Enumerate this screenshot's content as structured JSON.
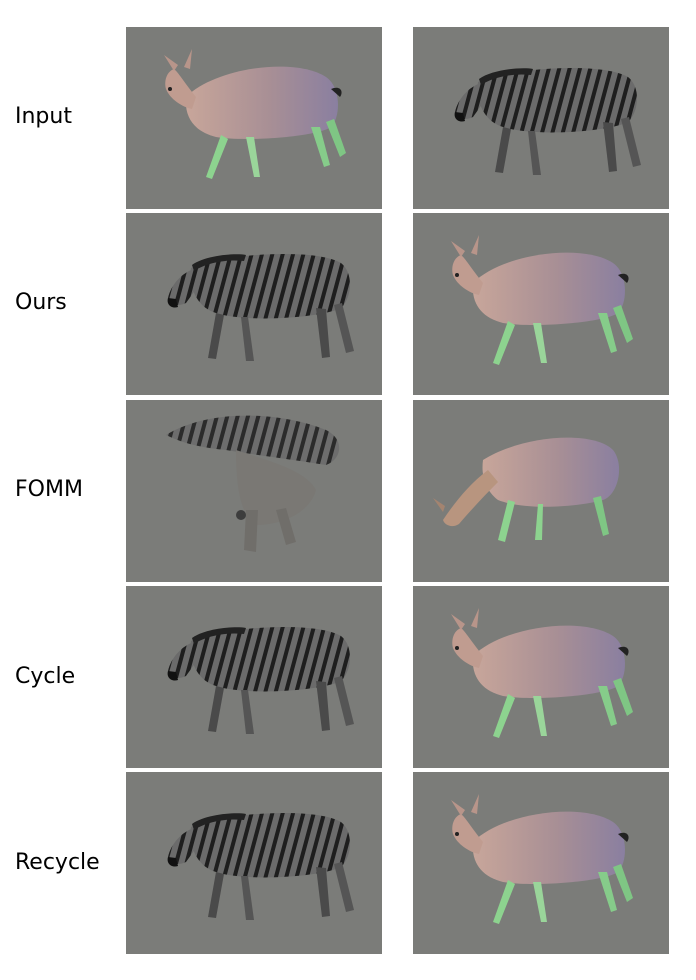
{
  "rows": [
    {
      "label": "Input",
      "left": "deer",
      "right": "zebra"
    },
    {
      "label": "Ours",
      "left": "zebra",
      "right": "deer"
    },
    {
      "label": "FOMM",
      "left": "zebra-blurry",
      "right": "deer-grazing"
    },
    {
      "label": "Cycle",
      "left": "zebra",
      "right": "deer"
    },
    {
      "label": "Recycle",
      "left": "zebra",
      "right": "deer"
    }
  ],
  "colors": {
    "background": "#7b7c79",
    "deer_body": "#b09088",
    "deer_hind": "#8a7f9c",
    "deer_legs": "#7fcf85",
    "zebra_body": "#5a5a5a",
    "zebra_stripe": "#1e1e1e"
  }
}
